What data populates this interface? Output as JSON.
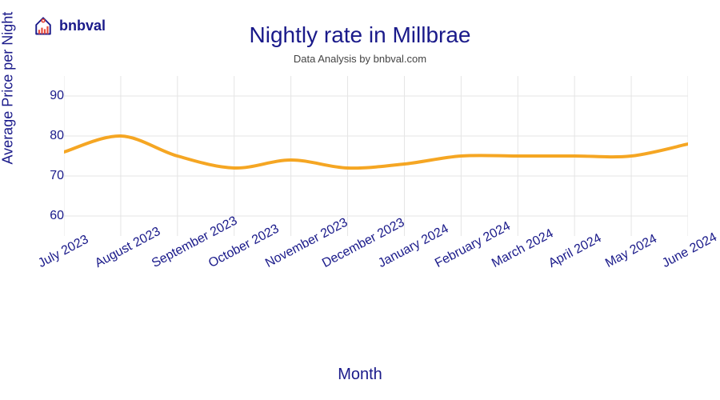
{
  "logo": {
    "text": "bnbval",
    "text_color": "#1a1a8a",
    "icon_house_color": "#1a1a8a",
    "icon_accent_color": "#f5a623",
    "icon_bars_color": "#e74c3c",
    "icon_badge_color": "#e74c3c"
  },
  "chart": {
    "type": "line",
    "title": "Nightly rate in Millbrae",
    "subtitle": "Data Analysis by bnbval.com",
    "title_color": "#1a1a8a",
    "title_fontsize": 28,
    "subtitle_color": "#444444",
    "subtitle_fontsize": 13,
    "x_label": "Month",
    "y_label": "Average Price per Night",
    "axis_label_color": "#1a1a8a",
    "axis_label_fontsize": 18,
    "tick_color": "#1a1a8a",
    "tick_fontsize": 16,
    "line_color": "#f5a623",
    "line_width": 4,
    "grid_color": "#e5e5e5",
    "grid_width": 1,
    "background_color": "#ffffff",
    "ylim": [
      55,
      95
    ],
    "yticks": [
      60,
      70,
      80,
      90
    ],
    "x_categories": [
      "July 2023",
      "August 2023",
      "September 2023",
      "October 2023",
      "November 2023",
      "December 2023",
      "January 2024",
      "February 2024",
      "March 2024",
      "April 2024",
      "May 2024",
      "June 2024"
    ],
    "y_values": [
      76,
      80,
      75,
      72,
      74,
      72,
      73,
      75,
      75,
      75,
      75,
      78
    ],
    "x_tick_rotation": -28
  }
}
